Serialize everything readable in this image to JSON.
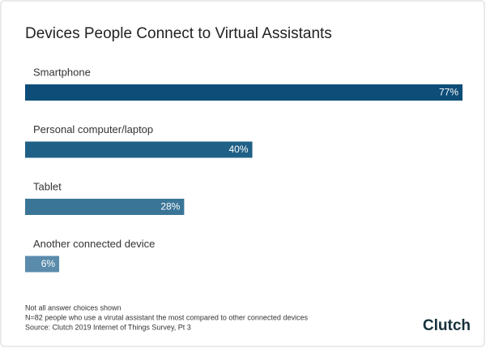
{
  "chart_data": {
    "type": "bar",
    "orientation": "horizontal",
    "title": "Devices People Connect to Virtual Assistants",
    "categories": [
      "Smartphone",
      "Personal computer/laptop",
      "Tablet",
      "Another connected device"
    ],
    "values": [
      77,
      40,
      28,
      6
    ],
    "value_labels": [
      "77%",
      "40%",
      "28%",
      "6%"
    ],
    "colors": [
      "#0d4d78",
      "#1f6086",
      "#3a7597",
      "#5b8bab"
    ],
    "notes": [
      "Not all answer choices shown",
      "N=82 people who use a virutal assistant the most compared to other connected devices",
      "Source: Clutch 2019 Internet of Things Survey, Pt 3"
    ],
    "logo": "Clutch"
  }
}
